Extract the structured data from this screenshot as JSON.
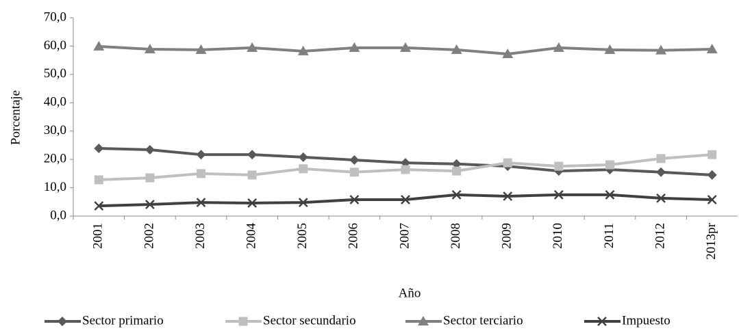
{
  "chart_data": {
    "type": "line",
    "xlabel": "Año",
    "ylabel": "Porcentaje",
    "categories": [
      "2001",
      "2002",
      "2003",
      "2004",
      "2005",
      "2006",
      "2007",
      "2008",
      "2009",
      "2010",
      "2011",
      "2012",
      "2013pr"
    ],
    "series": [
      {
        "name": "Sector primario",
        "color": "#595959",
        "marker": "diamond",
        "values": [
          23.9,
          23.4,
          21.7,
          21.7,
          20.8,
          19.8,
          18.8,
          18.4,
          17.6,
          15.9,
          16.4,
          15.5,
          14.5
        ]
      },
      {
        "name": "Sector secundario",
        "color": "#bfbfbf",
        "marker": "square",
        "values": [
          12.8,
          13.5,
          15.0,
          14.5,
          16.7,
          15.5,
          16.4,
          15.9,
          18.8,
          17.6,
          18.1,
          20.3,
          21.7
        ]
      },
      {
        "name": "Sector terciario",
        "color": "#808080",
        "marker": "triangle",
        "values": [
          59.9,
          58.9,
          58.7,
          59.4,
          58.2,
          59.4,
          59.4,
          58.7,
          57.2,
          59.4,
          58.7,
          58.5,
          58.9
        ]
      },
      {
        "name": "Impuesto",
        "color": "#404040",
        "marker": "x",
        "values": [
          3.6,
          4.1,
          4.8,
          4.6,
          4.8,
          5.8,
          5.8,
          7.5,
          7.0,
          7.5,
          7.5,
          6.3,
          5.8
        ]
      }
    ],
    "ylim": [
      0,
      70
    ],
    "yticks": [
      {
        "value": 0,
        "label": "0,0"
      },
      {
        "value": 10,
        "label": "10,0"
      },
      {
        "value": 20,
        "label": "20,0"
      },
      {
        "value": 30,
        "label": "30,0"
      },
      {
        "value": 40,
        "label": "40,0"
      },
      {
        "value": 50,
        "label": "50,0"
      },
      {
        "value": 60,
        "label": "60,0"
      },
      {
        "value": 70,
        "label": "70,0"
      }
    ],
    "grid": false,
    "legend": "bottom"
  }
}
